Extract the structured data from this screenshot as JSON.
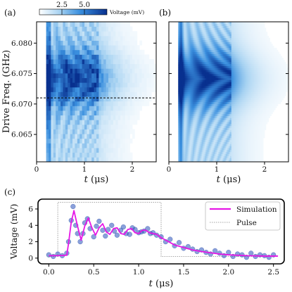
{
  "chart_data": [
    {
      "panel": "(a)",
      "type": "heatmap",
      "xlabel_var": "t",
      "xlabel_unit": "(μs)",
      "ylabel": "Drive Freq. (GHz)",
      "x_ticks": [
        "0",
        "1",
        "2"
      ],
      "y_ticks": [
        "6.065",
        "6.070",
        "6.075",
        "6.080"
      ],
      "xlim": [
        0,
        2.5
      ],
      "ylim": [
        6.0605,
        6.0835
      ],
      "reference_line_y": 6.071,
      "colorbar": {
        "label": "Voltage (mV)",
        "ticks": [
          "2.5",
          "5.0"
        ],
        "range": [
          0,
          7.5
        ]
      }
    },
    {
      "panel": "(b)",
      "type": "heatmap",
      "xlabel_var": "t",
      "xlabel_unit": "(μs)",
      "x_ticks": [
        "0",
        "1",
        "2"
      ],
      "xlim": [
        0,
        2.5
      ],
      "ylim": [
        6.0605,
        6.0835
      ]
    },
    {
      "panel": "(c)",
      "type": "line",
      "xlabel_var": "t",
      "xlabel_unit": "(μs)",
      "ylabel": "Voltage (mV)",
      "x_ticks": [
        "0.0",
        "0.5",
        "1.0",
        "1.5",
        "2.0",
        "2.5"
      ],
      "y_ticks": [
        "0",
        "2",
        "4",
        "6"
      ],
      "xlim": [
        -0.12,
        2.62
      ],
      "ylim": [
        -0.7,
        7.2
      ],
      "legend": {
        "position": "top-right",
        "entries": [
          "Simulation",
          "Pulse"
        ]
      },
      "series": [
        {
          "name": "Simulation",
          "color": "#e617e6",
          "x": [
            0.0,
            0.1,
            0.2,
            0.22,
            0.25,
            0.28,
            0.32,
            0.36,
            0.4,
            0.44,
            0.48,
            0.52,
            0.56,
            0.6,
            0.64,
            0.68,
            0.72,
            0.76,
            0.8,
            0.84,
            0.88,
            0.92,
            0.96,
            1.0,
            1.04,
            1.08,
            1.12,
            1.16,
            1.2,
            1.25,
            1.3,
            1.35,
            1.4,
            1.5,
            1.6,
            1.7,
            1.8,
            1.9,
            2.0,
            2.1,
            2.2,
            2.3,
            2.4,
            2.5,
            2.55
          ],
          "y": [
            0.3,
            0.3,
            0.35,
            1.8,
            4.4,
            5.8,
            3.9,
            2.2,
            3.9,
            4.9,
            3.7,
            2.8,
            3.7,
            4.2,
            3.2,
            2.9,
            3.6,
            3.7,
            3.0,
            2.9,
            3.5,
            3.6,
            3.1,
            3.0,
            3.4,
            3.4,
            3.1,
            3.0,
            2.9,
            2.5,
            2.2,
            1.9,
            1.6,
            1.3,
            1.0,
            0.8,
            0.65,
            0.5,
            0.4,
            0.35,
            0.3,
            0.28,
            0.25,
            0.25,
            0.25
          ]
        },
        {
          "name": "Pulse",
          "color": "#888888",
          "x": [
            0.0,
            0.1,
            0.1,
            1.25,
            1.25,
            2.55
          ],
          "y": [
            0.2,
            0.2,
            6.8,
            6.8,
            0.2,
            0.2
          ]
        },
        {
          "name": "Data",
          "color": "#2a52be",
          "x": [
            0.0,
            0.05,
            0.1,
            0.15,
            0.2,
            0.22,
            0.25,
            0.27,
            0.3,
            0.32,
            0.35,
            0.38,
            0.4,
            0.43,
            0.46,
            0.5,
            0.53,
            0.56,
            0.6,
            0.63,
            0.66,
            0.7,
            0.73,
            0.76,
            0.8,
            0.83,
            0.86,
            0.9,
            0.93,
            0.96,
            1.0,
            1.03,
            1.06,
            1.1,
            1.13,
            1.16,
            1.2,
            1.25,
            1.3,
            1.35,
            1.4,
            1.45,
            1.5,
            1.55,
            1.6,
            1.65,
            1.7,
            1.75,
            1.8,
            1.85,
            1.9,
            1.95,
            2.0,
            2.05,
            2.1,
            2.15,
            2.2,
            2.25,
            2.3,
            2.35,
            2.4,
            2.45,
            2.5
          ],
          "y": [
            0.4,
            0.2,
            0.5,
            0.3,
            0.6,
            2.0,
            4.6,
            6.3,
            4.0,
            3.0,
            2.0,
            3.0,
            4.3,
            4.8,
            3.6,
            2.6,
            3.9,
            4.5,
            3.4,
            2.7,
            3.5,
            4.0,
            3.3,
            2.8,
            3.4,
            3.8,
            3.0,
            2.9,
            3.7,
            3.5,
            3.1,
            3.2,
            3.3,
            3.6,
            3.0,
            3.1,
            2.8,
            2.6,
            2.0,
            2.3,
            1.5,
            1.9,
            1.2,
            1.4,
            1.1,
            0.8,
            1.0,
            0.7,
            0.5,
            0.9,
            0.6,
            0.3,
            0.7,
            0.2,
            0.5,
            0.4,
            0.1,
            0.6,
            0.2,
            0.4,
            0.3,
            0.1,
            0.4
          ]
        }
      ]
    }
  ]
}
